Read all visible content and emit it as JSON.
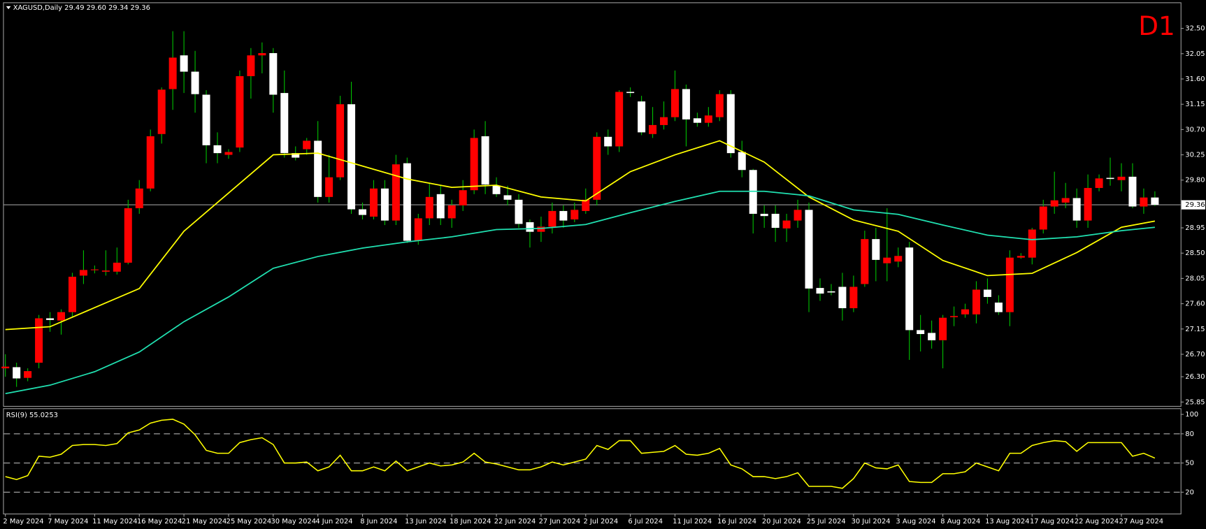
{
  "chart_data": {
    "type": "candlestick",
    "title": "XAGUSD,Daily  29.49 29.60 29.34 29.36",
    "timeframe": "D1",
    "categories": [
      "2 May 2024",
      null,
      null,
      null,
      "7 May 2024",
      null,
      null,
      null,
      "11 May 2024",
      null,
      null,
      null,
      "16 May 2024",
      null,
      null,
      null,
      "21 May 2024",
      null,
      null,
      null,
      "25 May 2024",
      null,
      null,
      null,
      "30 May 2024",
      null,
      null,
      null,
      "4 Jun 2024",
      null,
      null,
      null,
      "8 Jun 2024",
      null,
      null,
      null,
      "13 Jun 2024",
      null,
      null,
      null,
      "18 Jun 2024",
      null,
      null,
      null,
      "22 Jun 2024",
      null,
      null,
      null,
      "27 Jun 2024",
      null,
      null,
      null,
      "2 Jul 2024",
      null,
      null,
      null,
      "6 Jul 2024",
      null,
      null,
      null,
      "11 Jul 2024",
      null,
      null,
      null,
      "16 Jul 2024",
      null,
      null,
      null,
      "20 Jul 2024",
      null,
      null,
      null,
      "25 Jul 2024",
      null,
      null,
      null,
      "30 Jul 2024",
      null,
      null,
      null,
      "3 Aug 2024",
      null,
      null,
      null,
      "8 Aug 2024",
      null,
      null,
      null,
      "13 Aug 2024",
      null,
      null,
      null,
      "17 Aug 2024",
      null,
      null,
      null,
      "22 Aug 2024",
      null,
      null,
      null,
      "27 Aug 2024",
      null,
      null,
      null
    ],
    "open": [
      26.45,
      26.47,
      26.28,
      26.55,
      27.34,
      27.3,
      27.45,
      28.1,
      28.2,
      28.17,
      28.17,
      28.33,
      29.3,
      29.65,
      30.62,
      31.42,
      32.02,
      31.73,
      31.32,
      30.42,
      30.25,
      30.38,
      31.65,
      32.02,
      32.06,
      31.35,
      30.28,
      30.35,
      30.5,
      29.5,
      29.85,
      31.15,
      29.28,
      29.15,
      29.65,
      29.08,
      30.1,
      28.72,
      29.12,
      29.55,
      29.12,
      29.35,
      29.62,
      30.58,
      29.7,
      29.53,
      29.45,
      29.05,
      28.88,
      28.97,
      29.25,
      29.1,
      29.25,
      29.45,
      30.57,
      30.4,
      31.37,
      31.2,
      30.62,
      30.78,
      30.92,
      31.42,
      30.9,
      30.82,
      30.92,
      31.33,
      30.3,
      29.98,
      29.2,
      29.2,
      28.94,
      29.08,
      29.27,
      27.88,
      27.82,
      27.9,
      27.52,
      27.95,
      28.75,
      28.32,
      28.35,
      28.6,
      27.13,
      27.08,
      26.95,
      27.36,
      27.41,
      27.41,
      27.85,
      27.62,
      27.45,
      28.42,
      28.42,
      28.92,
      29.33,
      29.4,
      29.48,
      29.08,
      29.66,
      29.84,
      29.8,
      29.86,
      29.33,
      29.49
    ],
    "high": [
      26.7,
      26.55,
      26.45,
      27.4,
      27.45,
      27.5,
      28.15,
      28.55,
      28.28,
      28.55,
      28.6,
      29.45,
      29.8,
      30.7,
      31.45,
      32.45,
      32.45,
      32.1,
      31.4,
      30.65,
      30.35,
      31.75,
      32.15,
      32.25,
      32.15,
      31.75,
      30.4,
      30.55,
      30.85,
      30.25,
      31.3,
      31.55,
      29.4,
      29.8,
      29.8,
      30.25,
      30.2,
      29.2,
      29.75,
      29.7,
      29.45,
      29.8,
      30.7,
      30.85,
      29.85,
      29.7,
      29.55,
      29.1,
      29.15,
      29.4,
      29.35,
      29.4,
      29.65,
      30.65,
      30.7,
      31.4,
      31.45,
      31.3,
      31.1,
      31.2,
      31.75,
      31.5,
      31.0,
      31.1,
      31.4,
      31.4,
      30.5,
      30.0,
      29.35,
      29.35,
      29.2,
      29.45,
      29.4,
      28.05,
      27.95,
      28.15,
      28.1,
      28.9,
      28.95,
      29.3,
      28.6,
      28.7,
      27.4,
      27.3,
      27.4,
      27.55,
      27.6,
      28.0,
      28.05,
      27.75,
      28.55,
      28.5,
      28.95,
      29.45,
      29.95,
      29.75,
      29.65,
      29.9,
      29.9,
      30.2,
      30.1,
      30.1,
      29.65,
      29.6
    ],
    "low": [
      26.3,
      26.12,
      26.22,
      26.45,
      27.1,
      27.05,
      27.35,
      27.95,
      28.14,
      28.1,
      28.12,
      28.3,
      29.2,
      29.6,
      30.45,
      31.05,
      31.35,
      31.0,
      30.1,
      30.1,
      30.18,
      30.3,
      31.25,
      31.7,
      31.0,
      30.2,
      30.15,
      30.25,
      29.4,
      29.4,
      29.8,
      29.2,
      29.1,
      29.1,
      29.0,
      29.0,
      28.68,
      28.65,
      29.0,
      29.0,
      28.95,
      29.25,
      29.55,
      29.55,
      29.5,
      29.35,
      28.95,
      28.6,
      28.7,
      28.85,
      28.95,
      29.05,
      29.2,
      29.35,
      30.25,
      30.3,
      31.28,
      30.6,
      30.55,
      30.7,
      30.85,
      30.4,
      30.75,
      30.75,
      30.85,
      30.2,
      29.85,
      28.85,
      28.95,
      28.7,
      28.7,
      28.95,
      27.45,
      27.65,
      27.75,
      27.3,
      27.45,
      27.9,
      28.0,
      28.0,
      28.25,
      26.6,
      26.75,
      26.8,
      26.45,
      27.2,
      27.35,
      27.25,
      27.6,
      27.4,
      27.2,
      28.4,
      28.3,
      28.85,
      29.2,
      29.3,
      28.95,
      28.95,
      29.6,
      29.7,
      29.6,
      29.3,
      29.2,
      29.34
    ],
    "close": [
      26.48,
      26.27,
      26.4,
      27.34,
      27.31,
      27.45,
      28.08,
      28.2,
      28.21,
      28.19,
      28.33,
      29.3,
      29.65,
      30.58,
      31.41,
      31.98,
      31.73,
      31.33,
      30.42,
      30.28,
      30.3,
      31.65,
      32.02,
      32.06,
      31.32,
      30.28,
      30.2,
      30.5,
      29.5,
      29.85,
      31.15,
      29.28,
      29.18,
      29.65,
      29.08,
      30.08,
      28.72,
      29.12,
      29.5,
      29.12,
      29.35,
      29.62,
      30.55,
      29.72,
      29.55,
      29.45,
      29.02,
      28.88,
      28.97,
      29.25,
      29.08,
      29.27,
      29.45,
      30.57,
      30.4,
      31.37,
      31.35,
      30.65,
      30.78,
      30.92,
      31.42,
      30.88,
      30.82,
      30.95,
      31.33,
      30.28,
      29.98,
      29.2,
      29.16,
      28.95,
      29.08,
      29.27,
      27.87,
      27.78,
      27.8,
      27.52,
      27.9,
      28.75,
      28.38,
      28.42,
      28.45,
      27.13,
      27.06,
      26.95,
      27.35,
      27.38,
      27.5,
      27.85,
      27.72,
      27.45,
      28.42,
      28.45,
      28.92,
      29.33,
      29.44,
      29.48,
      29.08,
      29.66,
      29.83,
      29.82,
      29.86,
      29.33,
      29.49,
      29.36
    ],
    "up_color": "#ff0000",
    "down_color": "#ffffff",
    "wick_color": "#00c000",
    "ylim": [
      25.78,
      32.95
    ],
    "yticks": [
      {
        "value": 32.5,
        "label": "32.50"
      },
      32.05,
      {
        "value": 31.6,
        "label": "31.60"
      },
      31.15,
      {
        "value": 30.7,
        "label": "30.70"
      },
      30.25,
      {
        "value": 29.8,
        "label": "29.80"
      },
      28.95,
      {
        "value": 28.5,
        "label": "28.50"
      },
      28.05,
      {
        "value": 27.6,
        "label": "27.60"
      },
      27.15,
      {
        "value": 26.7,
        "label": "26.70"
      },
      {
        "value": 26.3,
        "label": "26.30"
      },
      25.85
    ],
    "last_price": 29.36,
    "overlays": [
      {
        "color": "#ffff00",
        "x": [
          0,
          4,
          8,
          12,
          16,
          20,
          24,
          28,
          32,
          36,
          40,
          44,
          48,
          52,
          56,
          60,
          64,
          68,
          72,
          76,
          80,
          84,
          88,
          92,
          96,
          100,
          103
        ],
        "values": [
          27.14,
          27.19,
          27.53,
          27.87,
          28.89,
          29.57,
          30.25,
          30.28,
          30.05,
          29.82,
          29.67,
          29.71,
          29.5,
          29.43,
          29.95,
          30.25,
          30.5,
          30.12,
          29.5,
          29.09,
          28.89,
          28.37,
          28.1,
          28.14,
          28.51,
          28.96,
          29.07
        ]
      },
      {
        "color": "#20e0b0",
        "x": [
          0,
          4,
          8,
          12,
          16,
          20,
          24,
          28,
          32,
          36,
          40,
          44,
          48,
          52,
          56,
          60,
          64,
          68,
          72,
          76,
          80,
          84,
          88,
          92,
          96,
          100,
          103
        ],
        "values": [
          26.0,
          26.15,
          26.39,
          26.74,
          27.28,
          27.72,
          28.23,
          28.44,
          28.59,
          28.7,
          28.79,
          28.92,
          28.94,
          29.01,
          29.22,
          29.42,
          29.6,
          29.6,
          29.52,
          29.27,
          29.19,
          29.0,
          28.82,
          28.74,
          28.79,
          28.9,
          28.96
        ]
      }
    ],
    "indicator": {
      "title": "RSI(9) 55.0253",
      "color": "#ffff00",
      "ylim": [
        -2,
        105.5
      ],
      "yticks": [
        100,
        80,
        50,
        20
      ],
      "levels": [
        80,
        50,
        20
      ],
      "values": [
        36,
        33,
        37,
        57,
        56,
        59,
        68,
        69,
        69,
        68,
        70,
        81,
        84,
        91,
        94,
        95,
        90,
        79,
        63,
        60,
        60,
        71,
        74,
        76,
        69,
        50,
        50,
        51,
        42,
        46,
        58,
        42,
        42,
        46,
        42,
        52,
        42,
        46,
        50,
        47,
        48,
        51,
        60,
        51,
        49,
        46,
        43,
        43,
        46,
        51,
        48,
        51,
        54,
        68,
        64,
        73,
        73,
        60,
        61,
        62,
        68,
        59,
        58,
        60,
        65,
        48,
        44,
        36,
        36,
        34,
        36,
        40,
        26,
        26,
        26,
        24,
        34,
        50,
        45,
        44,
        48,
        31,
        30,
        30,
        39,
        39,
        41,
        50,
        46,
        42,
        60,
        60,
        68,
        71,
        73,
        72,
        62,
        71,
        71,
        71,
        71,
        57,
        60,
        55.0253
      ]
    }
  }
}
